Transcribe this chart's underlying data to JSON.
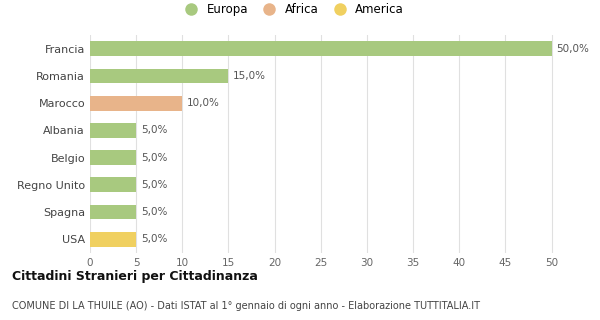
{
  "categories": [
    "Francia",
    "Romania",
    "Marocco",
    "Albania",
    "Belgio",
    "Regno Unito",
    "Spagna",
    "USA"
  ],
  "values": [
    50.0,
    15.0,
    10.0,
    5.0,
    5.0,
    5.0,
    5.0,
    5.0
  ],
  "colors": [
    "#a8c97f",
    "#a8c97f",
    "#e8b48a",
    "#a8c97f",
    "#a8c97f",
    "#a8c97f",
    "#a8c97f",
    "#f0d060"
  ],
  "legend_labels": [
    "Europa",
    "Africa",
    "America"
  ],
  "legend_colors": [
    "#a8c97f",
    "#e8b48a",
    "#f0d060"
  ],
  "xlim": [
    0,
    52
  ],
  "xticks": [
    0,
    5,
    10,
    15,
    20,
    25,
    30,
    35,
    40,
    45,
    50
  ],
  "title": "Cittadini Stranieri per Cittadinanza",
  "subtitle": "COMUNE DI LA THUILE (AO) - Dati ISTAT al 1° gennaio di ogni anno - Elaborazione TUTTITALIA.IT",
  "bar_labels": [
    "50,0%",
    "15,0%",
    "10,0%",
    "5,0%",
    "5,0%",
    "5,0%",
    "5,0%",
    "5,0%"
  ],
  "background_color": "#ffffff",
  "grid_color": "#e0e0e0"
}
